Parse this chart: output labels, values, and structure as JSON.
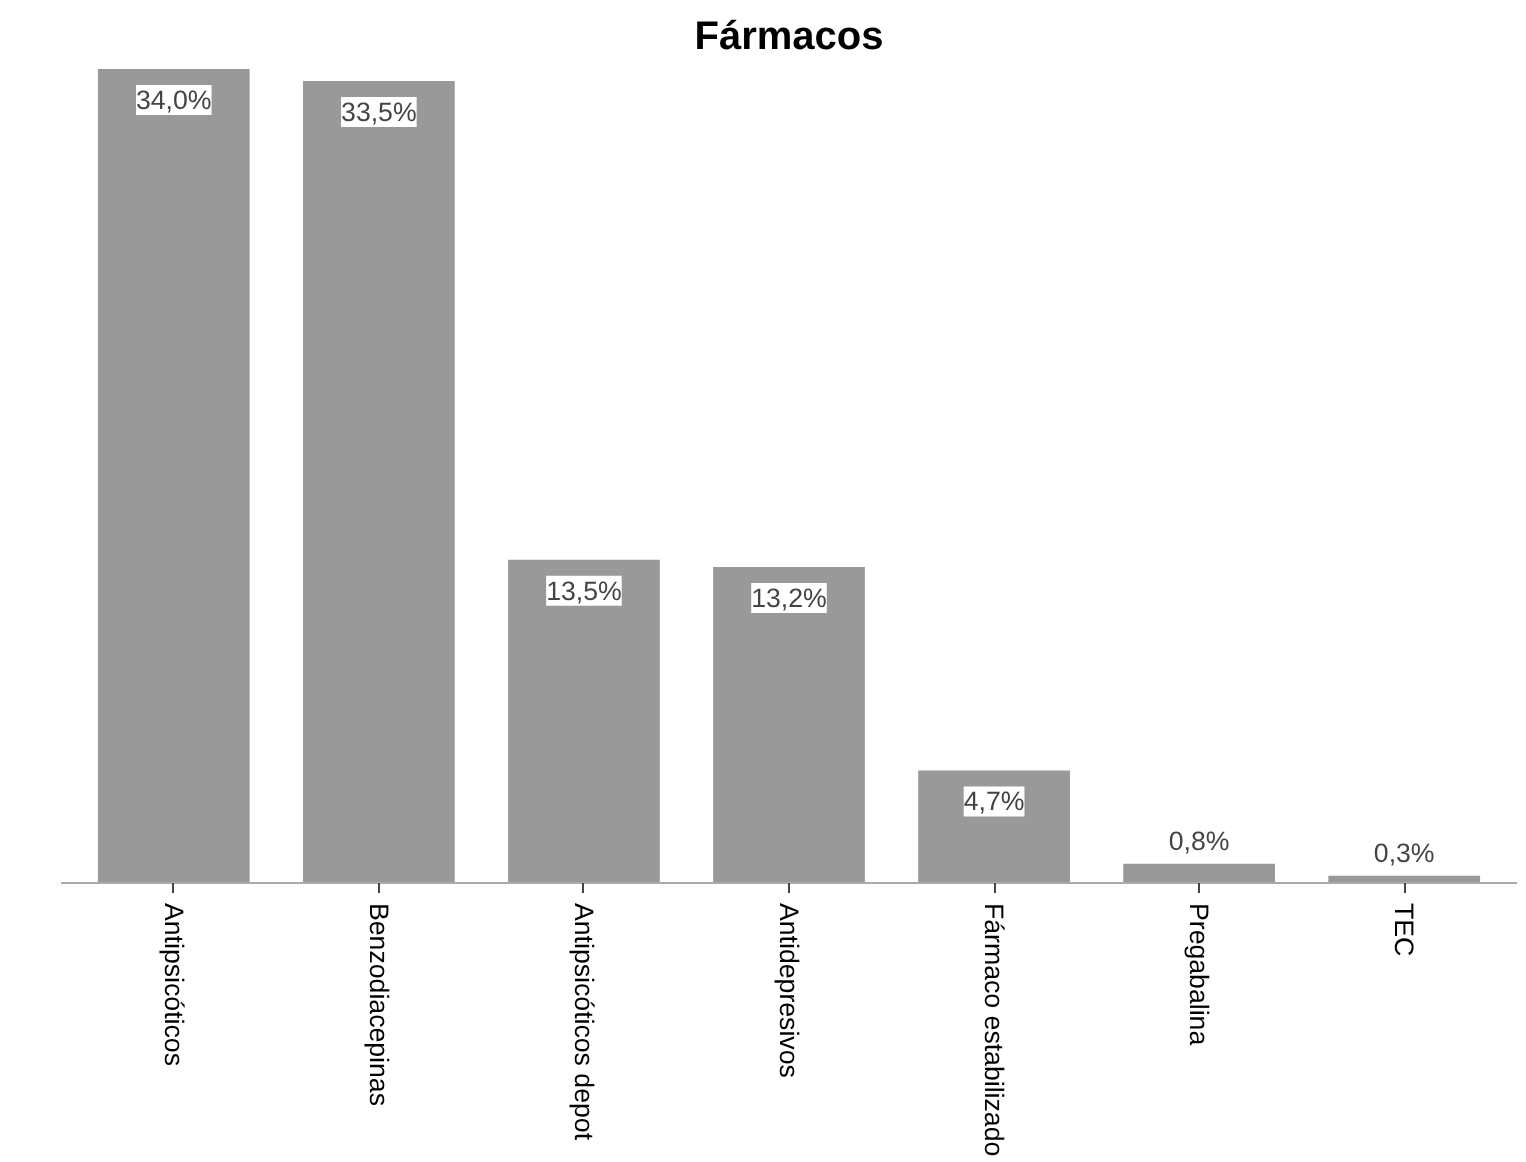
{
  "chart_data": {
    "type": "bar",
    "title": "Fármacos",
    "categories": [
      "Antipsicóticos",
      "Benzodiacepinas",
      "Antipsicóticos depot",
      "Antidepresivos",
      "Fármaco estabilizado",
      "Pregabalina",
      "TEC"
    ],
    "values": [
      34.0,
      33.5,
      13.5,
      13.2,
      4.7,
      0.8,
      0.3
    ],
    "value_labels": [
      "34,0%",
      "33,5%",
      "13,5%",
      "13,2%",
      "4,7%",
      "0,8%",
      "0,3%"
    ],
    "color": "#999999",
    "grid": false
  }
}
